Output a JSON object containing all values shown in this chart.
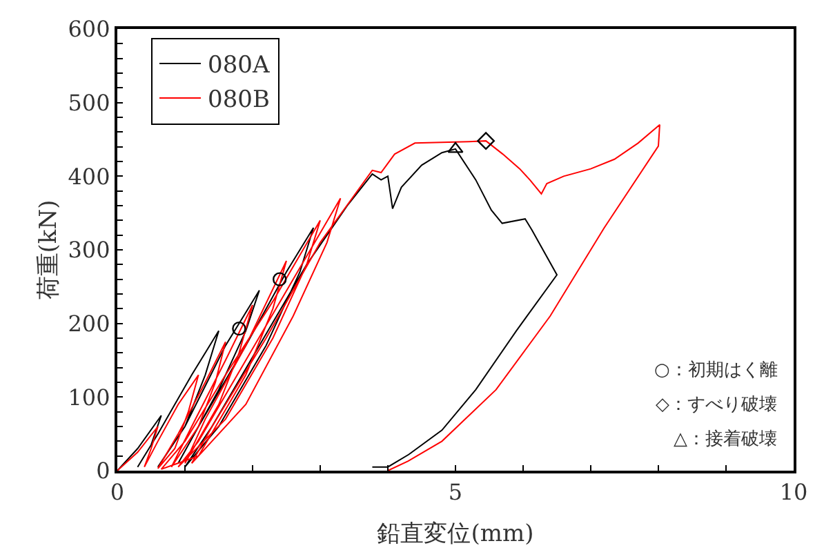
{
  "chart_data": {
    "type": "line",
    "xlabel": "鉛直変位(mm)",
    "ylabel": "荷重(kN)",
    "xlim": [
      0,
      10
    ],
    "ylim": [
      0,
      600
    ],
    "xticks": [
      0,
      {
        "value": 1,
        "label": null
      },
      {
        "value": 2,
        "label": null
      },
      {
        "value": 3,
        "label": null
      },
      {
        "value": 4,
        "label": null
      },
      5,
      {
        "value": 6,
        "label": null
      },
      {
        "value": 7,
        "label": null
      },
      {
        "value": 8,
        "label": null
      },
      {
        "value": 9,
        "label": null
      },
      10
    ],
    "yticks": [
      0,
      {
        "value": 20,
        "label": null
      },
      {
        "value": 40,
        "label": null
      },
      {
        "value": 60,
        "label": null
      },
      {
        "value": 80,
        "label": null
      },
      100,
      {
        "value": 120,
        "label": null
      },
      {
        "value": 140,
        "label": null
      },
      {
        "value": 160,
        "label": null
      },
      {
        "value": 180,
        "label": null
      },
      200,
      {
        "value": 220,
        "label": null
      },
      {
        "value": 240,
        "label": null
      },
      {
        "value": 260,
        "label": null
      },
      {
        "value": 280,
        "label": null
      },
      300,
      {
        "value": 320,
        "label": null
      },
      {
        "value": 340,
        "label": null
      },
      {
        "value": 360,
        "label": null
      },
      {
        "value": 380,
        "label": null
      },
      400,
      {
        "value": 420,
        "label": null
      },
      {
        "value": 440,
        "label": null
      },
      {
        "value": 460,
        "label": null
      },
      {
        "value": 480,
        "label": null
      },
      500,
      {
        "value": 520,
        "label": null
      },
      {
        "value": 540,
        "label": null
      },
      {
        "value": 560,
        "label": null
      },
      {
        "value": 580,
        "label": null
      },
      600
    ],
    "legend": "top left",
    "marker": "none",
    "line_style": "solid",
    "series": [
      {
        "name": "080A",
        "color": "#000000",
        "x": [
          0,
          0.3,
          0.65,
          0.5,
          0.3,
          0.6,
          1.1,
          1.5,
          1.3,
          1.0,
          0.6,
          1.0,
          1.6,
          2.1,
          1.9,
          1.5,
          0.9,
          1.2,
          1.9,
          2.5,
          2.9,
          2.7,
          2.2,
          1.5,
          1.0,
          1.4,
          2.1,
          2.8,
          3.4,
          3.77,
          3.9,
          4.0,
          4.07,
          4.2,
          4.5,
          4.8,
          5.0,
          5.3,
          5.53,
          5.69,
          6.03,
          6.13,
          6.5,
          5.9,
          5.3,
          4.8,
          4.31,
          4.0,
          3.77
        ],
        "values": [
          0,
          30,
          75,
          35,
          5,
          50,
          130,
          190,
          130,
          60,
          5,
          60,
          170,
          245,
          190,
          110,
          10,
          60,
          170,
          270,
          330,
          270,
          170,
          60,
          5,
          60,
          170,
          280,
          360,
          403,
          395,
          400,
          356,
          385,
          415,
          432,
          437,
          395,
          354,
          336,
          342,
          327,
          266,
          190,
          110,
          55,
          22,
          5,
          5
        ]
      },
      {
        "name": "080B",
        "color": "#ff0000",
        "x": [
          0,
          0.3,
          0.6,
          0.5,
          0.4,
          0.6,
          0.9,
          1.2,
          1.05,
          0.85,
          0.6,
          0.9,
          1.3,
          1.6,
          1.45,
          1.2,
          0.8,
          1.1,
          1.6,
          2.0,
          1.8,
          1.5,
          1.0,
          1.3,
          1.9,
          2.5,
          2.3,
          1.9,
          1.2,
          0.65,
          1.0,
          1.6,
          2.3,
          3.0,
          2.8,
          2.3,
          1.6,
          0.9,
          1.2,
          1.9,
          2.6,
          3.3,
          3.1,
          2.6,
          1.9,
          1.1,
          1.4,
          2.2,
          3.0,
          3.77,
          3.9,
          4.1,
          4.4,
          4.8,
          5.2,
          5.45,
          5.7,
          5.95,
          6.1,
          6.27,
          6.35,
          6.6,
          7.0,
          7.35,
          7.7,
          8.02,
          8.0,
          7.2,
          6.4,
          5.6,
          4.8,
          4.3,
          4.0
        ],
        "values": [
          0,
          25,
          60,
          30,
          5,
          40,
          90,
          130,
          80,
          30,
          3,
          50,
          120,
          175,
          120,
          60,
          5,
          60,
          150,
          225,
          160,
          90,
          10,
          70,
          170,
          285,
          220,
          130,
          20,
          2,
          40,
          130,
          230,
          340,
          280,
          180,
          70,
          5,
          40,
          150,
          260,
          370,
          310,
          210,
          90,
          10,
          60,
          180,
          310,
          408,
          405,
          430,
          445,
          446,
          447,
          448,
          430,
          410,
          395,
          376,
          390,
          400,
          410,
          423,
          445,
          470,
          441,
          330,
          210,
          110,
          40,
          13,
          0
        ]
      },
      {
        "type": "scatter",
        "marker": "circle",
        "color": "#000000",
        "x": [
          1.8,
          2.4
        ],
        "values": [
          193,
          260
        ]
      },
      {
        "type": "scatter",
        "marker": "diamond",
        "color": "#000000",
        "x": [
          5.45
        ],
        "values": [
          448
        ]
      },
      {
        "type": "scatter",
        "marker": "triangle",
        "color": "#000000",
        "x": [
          5.0
        ],
        "values": [
          437
        ]
      }
    ],
    "annotations": [
      "○：初期はく離",
      "◇：すべり破壊",
      "△：接着破壊"
    ]
  }
}
